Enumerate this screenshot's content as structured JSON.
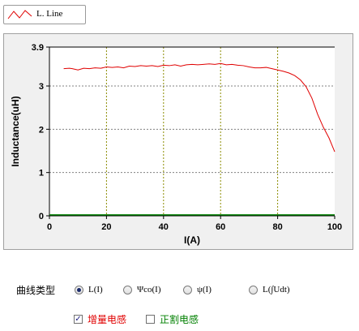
{
  "legend": {
    "label": "L. Line",
    "line_color": "#e00000"
  },
  "chart_data": {
    "type": "line",
    "title": "",
    "xlabel": "I(A)",
    "ylabel": "Inductance(uH)",
    "xlim": [
      0,
      100
    ],
    "ylim": [
      0,
      3.9
    ],
    "x_ticks": [
      "0",
      "20",
      "40",
      "60",
      "80",
      "100"
    ],
    "y_ticks": [
      "0",
      "1",
      "2",
      "3",
      "3.9"
    ],
    "grid": true,
    "colors": {
      "line": "#e00000",
      "vgrid": "#8b8b00",
      "hgrid": "#808080",
      "baseline": "#008000",
      "plot_bg": "#ffffff",
      "frame_bg": "#f0f0f0"
    },
    "series": [
      {
        "x": [
          5,
          7,
          8,
          10,
          12,
          14,
          16,
          18,
          20,
          22,
          24,
          26,
          28,
          30,
          32,
          34,
          36,
          38,
          40,
          42,
          44,
          46,
          48,
          50,
          52,
          54,
          56,
          58,
          60,
          62,
          64,
          66,
          68,
          70,
          72,
          74,
          76,
          78,
          80,
          82,
          84,
          86,
          88,
          90,
          92,
          94,
          96,
          98,
          100
        ],
        "y": [
          3.4,
          3.41,
          3.4,
          3.37,
          3.41,
          3.4,
          3.42,
          3.41,
          3.44,
          3.43,
          3.44,
          3.42,
          3.46,
          3.45,
          3.47,
          3.46,
          3.47,
          3.45,
          3.48,
          3.47,
          3.49,
          3.46,
          3.49,
          3.5,
          3.49,
          3.5,
          3.51,
          3.5,
          3.52,
          3.49,
          3.5,
          3.48,
          3.47,
          3.44,
          3.42,
          3.42,
          3.43,
          3.4,
          3.37,
          3.34,
          3.3,
          3.24,
          3.14,
          2.98,
          2.72,
          2.35,
          2.05,
          1.8,
          1.48
        ]
      },
      {
        "x": [
          0,
          100
        ],
        "y": [
          0.02,
          0.02
        ]
      }
    ]
  },
  "controls": {
    "curve_type_label": "曲线类型",
    "radios": [
      {
        "label": "L(I)",
        "selected": true
      },
      {
        "label": "Ψco(I)",
        "selected": false
      },
      {
        "label": "ψ(I)",
        "selected": false
      },
      {
        "label": "L(∫Udt)",
        "selected": false
      }
    ],
    "checkboxes": [
      {
        "label": "增量电感",
        "checked": true,
        "color": "#e00000"
      },
      {
        "label": "正割电感",
        "checked": false,
        "color": "#008000"
      }
    ]
  }
}
